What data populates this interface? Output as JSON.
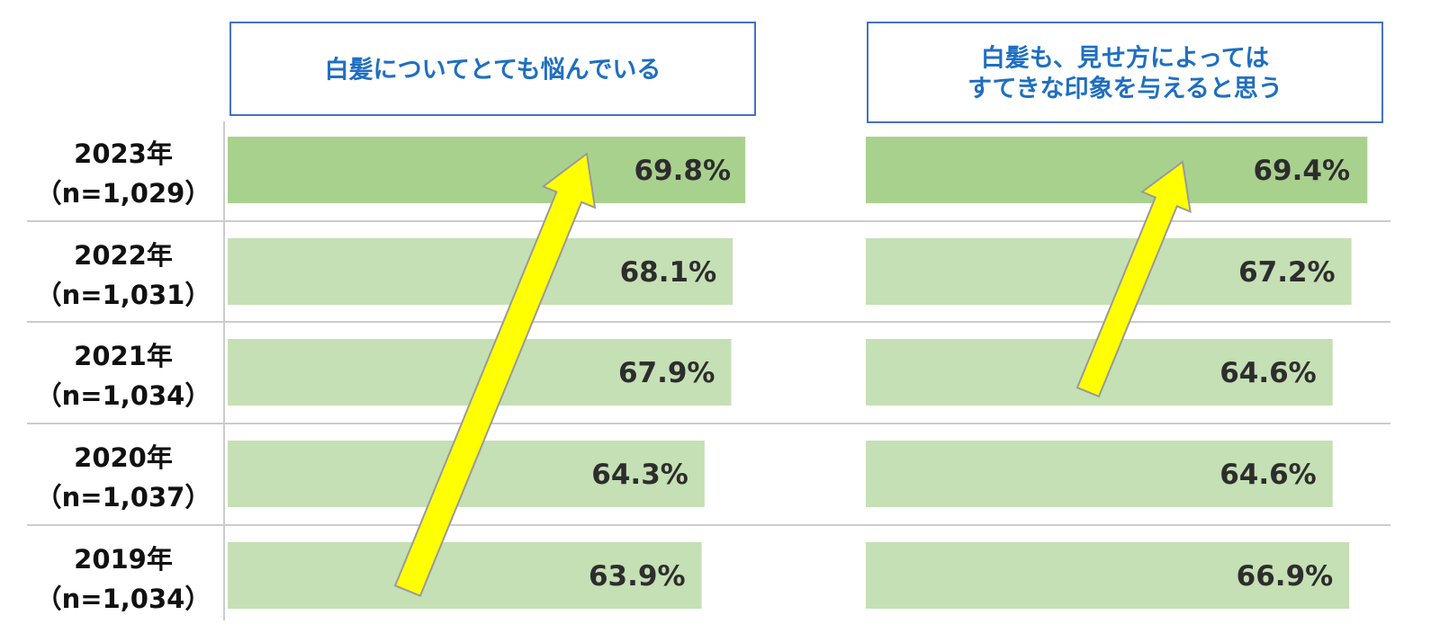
{
  "chart_data": {
    "type": "bar",
    "orientation": "horizontal",
    "categories": [
      {
        "year": "2023年",
        "n": "（n=1,029）"
      },
      {
        "year": "2022年",
        "n": "（n=1,031）"
      },
      {
        "year": "2021年",
        "n": "（n=1,034）"
      },
      {
        "year": "2020年",
        "n": "（n=1,037）"
      },
      {
        "year": "2019年",
        "n": "（n=1,034）"
      }
    ],
    "series": [
      {
        "header": [
          "白髪についてとても悩んでいる"
        ],
        "values": [
          69.8,
          68.1,
          67.9,
          64.3,
          63.9
        ],
        "value_labels": [
          "69.8%",
          "68.1%",
          "67.9%",
          "64.3%",
          "63.9%"
        ]
      },
      {
        "header": [
          "白髪も、見せ方によっては",
          "すてきな印象を与えると思う"
        ],
        "values": [
          69.4,
          67.2,
          64.6,
          64.6,
          66.9
        ],
        "value_labels": [
          "69.4%",
          "67.2%",
          "64.6%",
          "64.6%",
          "66.9%"
        ]
      }
    ],
    "colors": {
      "highlight_bar": "#a9d18e",
      "bar": "#c5e0b4",
      "header_border": "#4472c4",
      "header_text": "#1f6fc0",
      "arrow_fill": "#ffff00",
      "arrow_stroke": "#9a9a9a",
      "divider": "#cccccc"
    }
  }
}
